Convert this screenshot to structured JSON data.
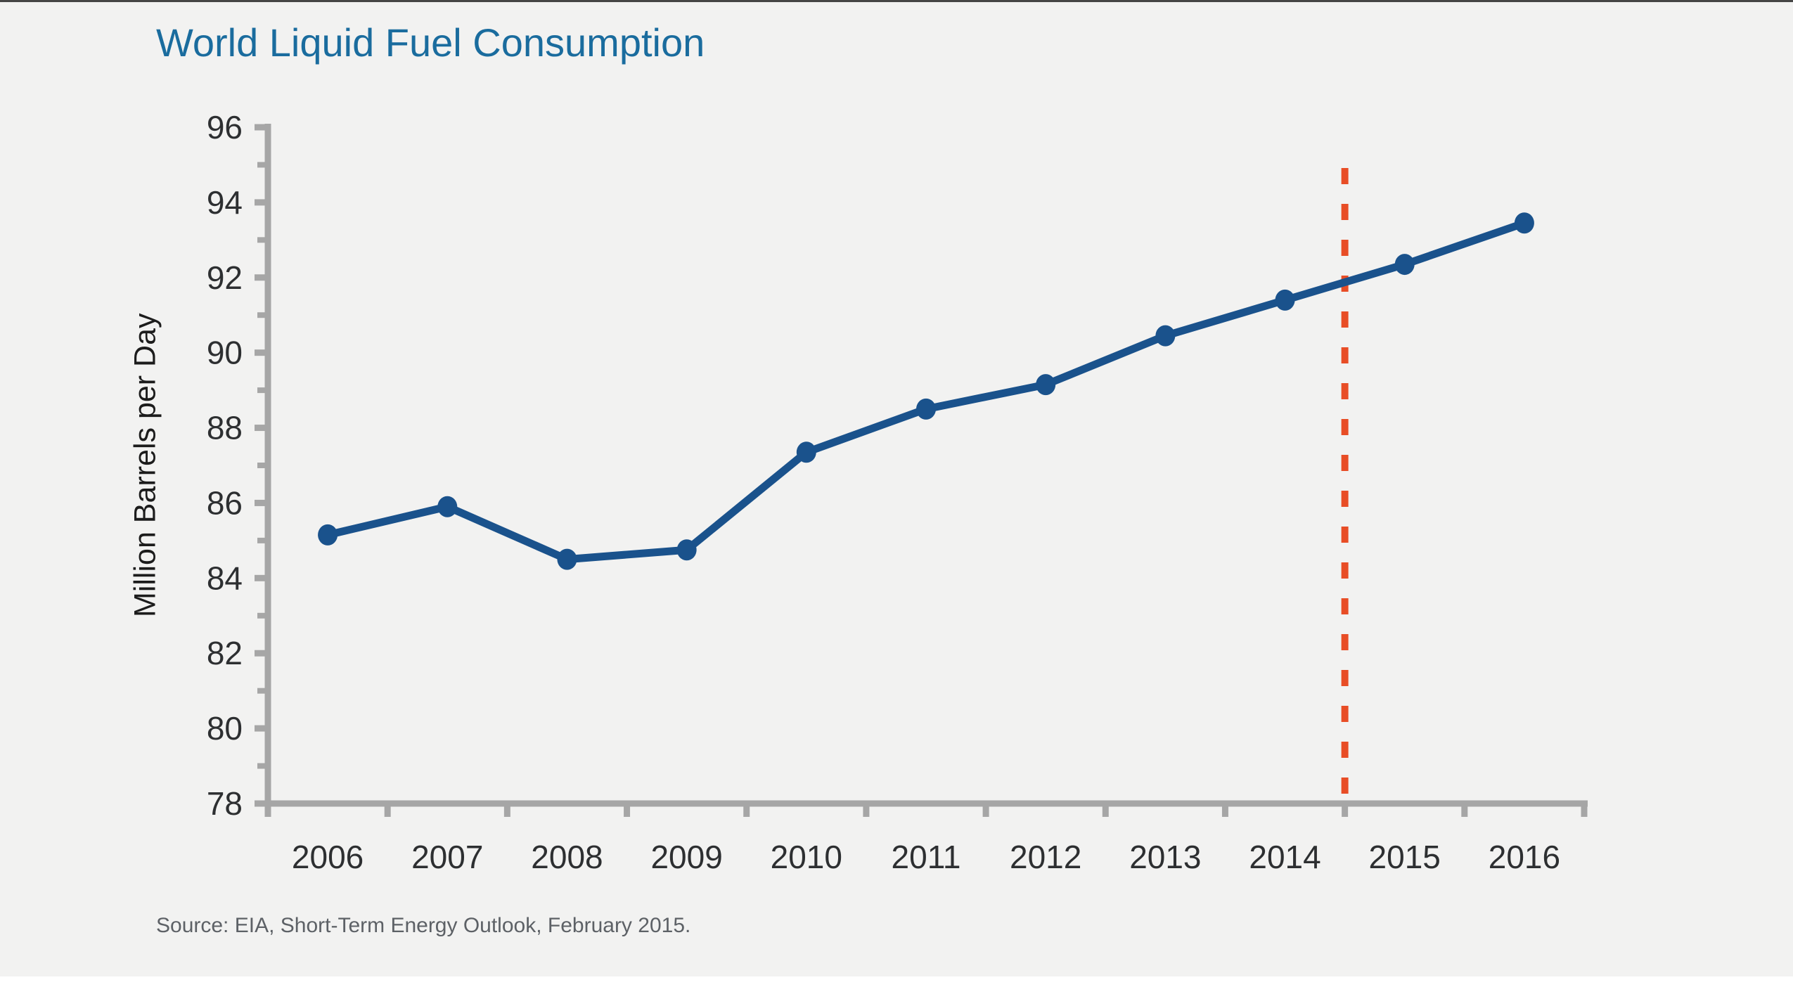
{
  "page": {
    "background_color": "#f2f2f1",
    "top_border_color": "#454545",
    "bottom_bar_color": "#ffffff"
  },
  "header": {
    "title": "World Liquid Fuel Consumption",
    "title_color": "#1a6c9e"
  },
  "footer": {
    "source": "Source: EIA, Short-Term Energy Outlook, February 2015."
  },
  "chart_data": {
    "type": "line",
    "title": "World Liquid Fuel Consumption",
    "xlabel": "",
    "ylabel": "Million Barrels per Day",
    "categories": [
      "2006",
      "2007",
      "2008",
      "2009",
      "2010",
      "2011",
      "2012",
      "2013",
      "2014",
      "2015",
      "2016"
    ],
    "series": [
      {
        "name": "World liquid fuel consumption",
        "values": [
          85.15,
          85.9,
          84.5,
          84.75,
          87.35,
          88.5,
          89.15,
          90.45,
          91.4,
          92.35,
          93.45
        ]
      }
    ],
    "ylim": [
      78,
      96
    ],
    "ytick_step": 2,
    "ytick_minor_step": 1,
    "grid": false,
    "legend_position": "none",
    "line_color": "#1a528c",
    "marker": "circle",
    "axis_color": "#a6a6a6",
    "tick_label_color": "#2d2f31",
    "annotations": [
      {
        "type": "vline",
        "x": 2014.5,
        "style": "dashed",
        "color": "#e84d26"
      }
    ]
  }
}
